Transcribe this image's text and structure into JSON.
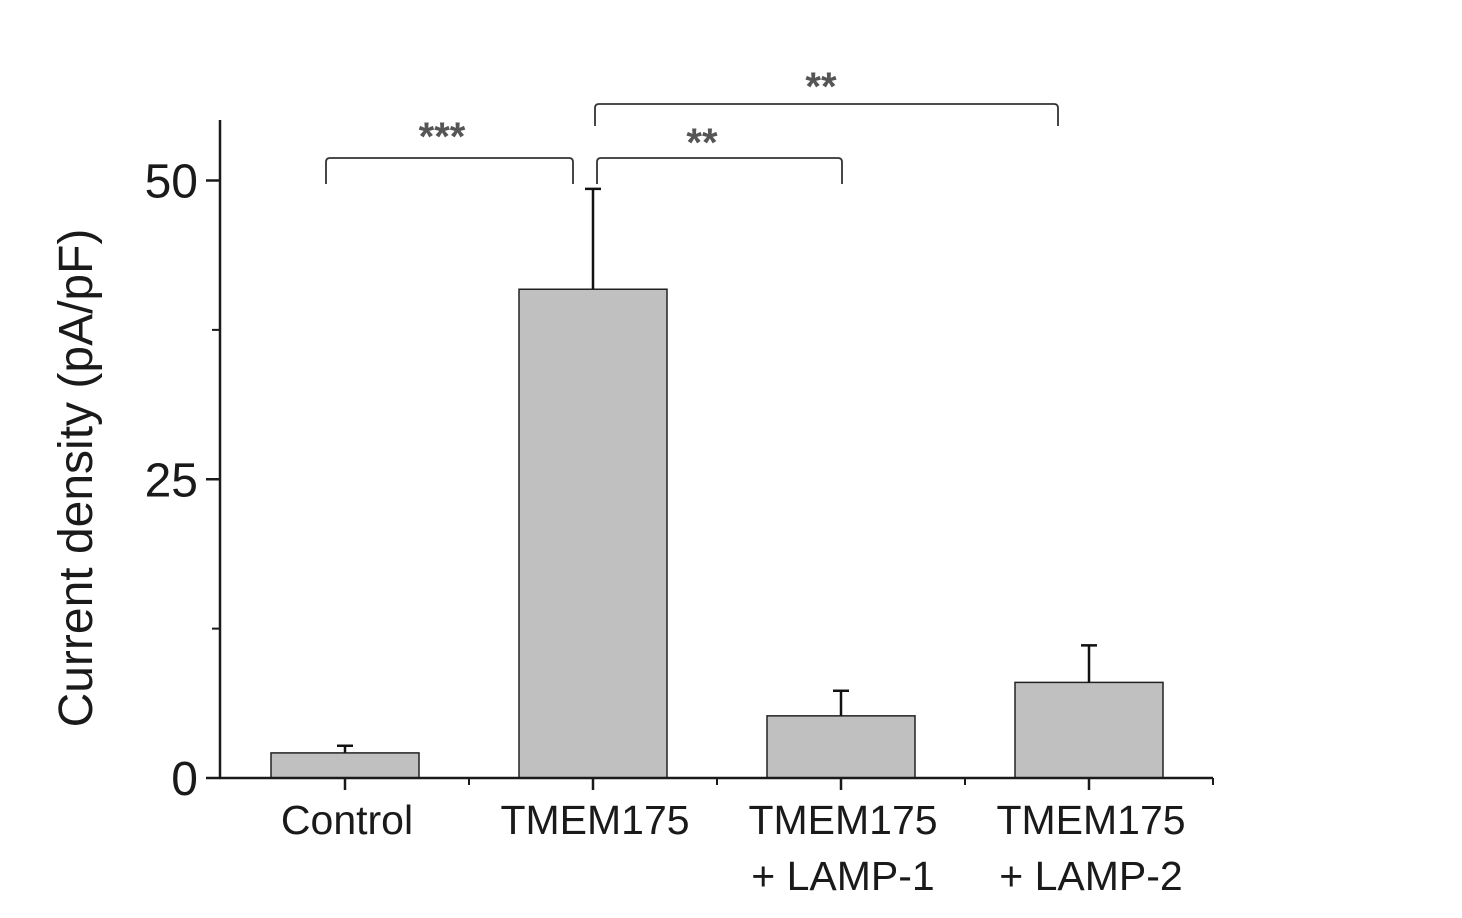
{
  "chart_data": {
    "type": "bar",
    "categories": [
      "Control",
      "TMEM175",
      "TMEM175 + LAMP-1",
      "TMEM175 + LAMP-2"
    ],
    "category_lines": [
      [
        "Control"
      ],
      [
        "TMEM175"
      ],
      [
        "TMEM175",
        "+ LAMP-1"
      ],
      [
        "TMEM175",
        "+ LAMP-2"
      ]
    ],
    "values": [
      2.1,
      40.9,
      5.2,
      8.0
    ],
    "errors": [
      0.6,
      8.4,
      2.1,
      3.1
    ],
    "ylabel": "Current density (pA/pF)",
    "xlabel": "",
    "ylim": [
      0,
      55
    ],
    "yticks": [
      0,
      25,
      50
    ],
    "yticks_minor": [
      12.5,
      37.5
    ],
    "ytick_labels": [
      "0",
      "25",
      "50"
    ],
    "grid": false,
    "colors": {
      "bar_fill": "#c0c0c0",
      "bar_stroke": "#222222",
      "axis": "#1a1a1a",
      "significance": "#555555"
    },
    "significance": [
      {
        "from": 0,
        "to": 1,
        "label": "***"
      },
      {
        "from": 1,
        "to": 2,
        "label": "**"
      },
      {
        "from": 1,
        "to": 3,
        "label": "**"
      }
    ]
  }
}
